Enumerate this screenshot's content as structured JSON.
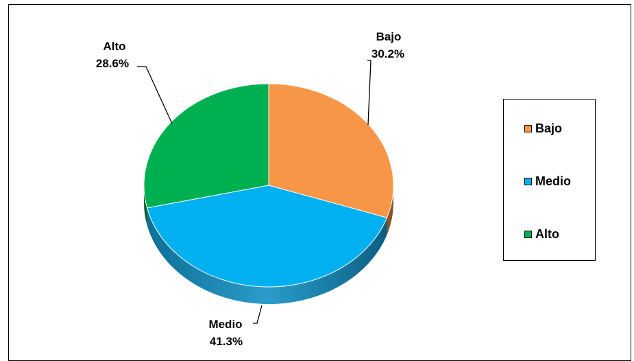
{
  "chart_data": {
    "type": "pie",
    "title": "",
    "slices": [
      {
        "name": "Bajo",
        "value": 30.2,
        "label": "30.2%",
        "color": "#F79646"
      },
      {
        "name": "Medio",
        "value": 41.3,
        "label": "41.3%",
        "color": "#00B0F0"
      },
      {
        "name": "Alto",
        "value": 28.6,
        "label": "28.6%",
        "color": "#00B050"
      }
    ],
    "legend": {
      "placement": "right",
      "entries": [
        "Bajo",
        "Medio",
        "Alto"
      ]
    },
    "style": "3d"
  }
}
